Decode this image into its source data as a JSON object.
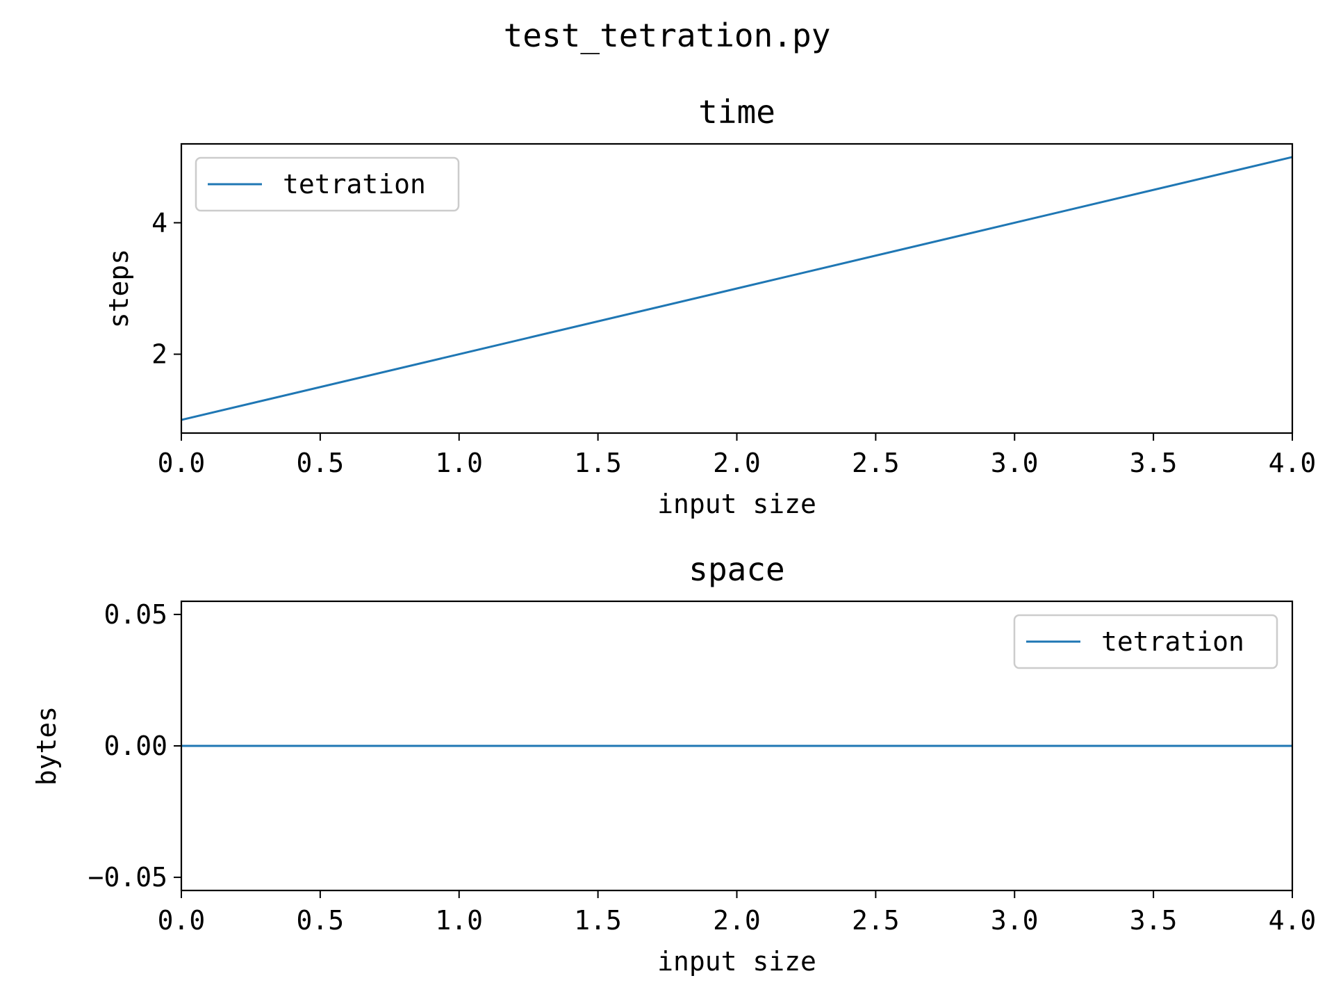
{
  "figure": {
    "suptitle": "test_tetration.py"
  },
  "chart_data": [
    {
      "type": "line",
      "title": "time",
      "xlabel": "input size",
      "ylabel": "steps",
      "xlim": [
        0.0,
        4.0
      ],
      "ylim": [
        0.8,
        5.2
      ],
      "xticks": [
        0.0,
        0.5,
        1.0,
        1.5,
        2.0,
        2.5,
        3.0,
        3.5,
        4.0
      ],
      "xtick_labels": [
        "0.0",
        "0.5",
        "1.0",
        "1.5",
        "2.0",
        "2.5",
        "3.0",
        "3.5",
        "4.0"
      ],
      "yticks": [
        2,
        4
      ],
      "ytick_labels": [
        "2",
        "4"
      ],
      "grid": false,
      "legend": "upper-left",
      "series": [
        {
          "name": "tetration",
          "color": "#1f77b4",
          "x": [
            0,
            1,
            2,
            3,
            4
          ],
          "y": [
            1,
            2,
            3,
            4,
            5
          ]
        }
      ]
    },
    {
      "type": "line",
      "title": "space",
      "xlabel": "input size",
      "ylabel": "bytes",
      "xlim": [
        0.0,
        4.0
      ],
      "ylim": [
        -0.055,
        0.055
      ],
      "xticks": [
        0.0,
        0.5,
        1.0,
        1.5,
        2.0,
        2.5,
        3.0,
        3.5,
        4.0
      ],
      "xtick_labels": [
        "0.0",
        "0.5",
        "1.0",
        "1.5",
        "2.0",
        "2.5",
        "3.0",
        "3.5",
        "4.0"
      ],
      "yticks": [
        -0.05,
        0.0,
        0.05
      ],
      "ytick_labels": [
        "−0.05",
        "0.00",
        "0.05"
      ],
      "grid": false,
      "legend": "upper-right",
      "series": [
        {
          "name": "tetration",
          "color": "#1f77b4",
          "x": [
            0,
            1,
            2,
            3,
            4
          ],
          "y": [
            0,
            0,
            0,
            0,
            0
          ]
        }
      ]
    }
  ]
}
